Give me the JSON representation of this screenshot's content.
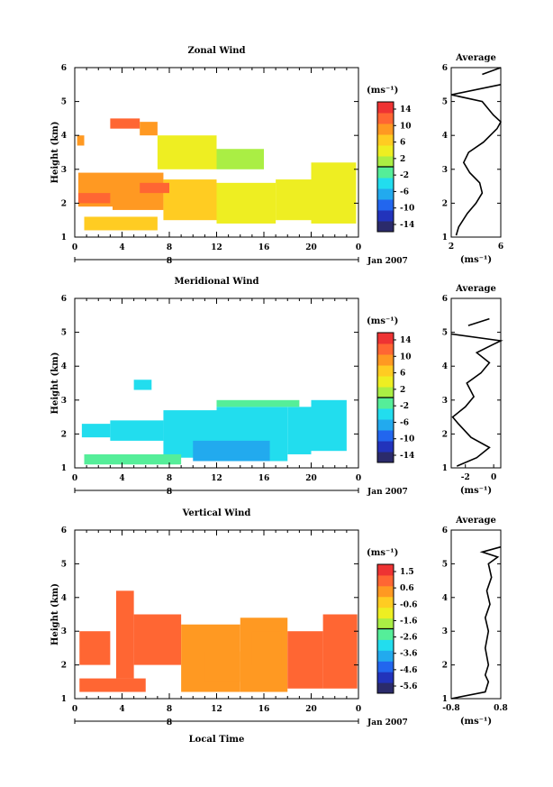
{
  "chart_data": [
    {
      "type": "heatmap",
      "title": "Zonal Wind",
      "ylabel": "Height (km)",
      "xlabel": "",
      "xlim": [
        0,
        24
      ],
      "ylim": [
        1,
        6
      ],
      "x_ticks": [
        "0",
        "4",
        "8",
        "12",
        "16",
        "20",
        "0"
      ],
      "y_ticks": [
        "1",
        "2",
        "3",
        "4",
        "5",
        "6"
      ],
      "date_marker": "8",
      "date_label": "Jan 2007",
      "colorbar": {
        "unit": "(ms⁻¹)",
        "labels": [
          "14",
          "10",
          "6",
          "2",
          "-2",
          "-6",
          "-10",
          "-14"
        ],
        "min": -16,
        "max": 16
      },
      "patches": [
        {
          "x": [
            0.3,
            3.2
          ],
          "y": [
            1.9,
            2.9
          ],
          "value": 10
        },
        {
          "x": [
            3.2,
            7.5
          ],
          "y": [
            1.8,
            2.9
          ],
          "value": 9
        },
        {
          "x": [
            7.5,
            12.0
          ],
          "y": [
            1.5,
            2.7
          ],
          "value": 6
        },
        {
          "x": [
            12.0,
            17.0
          ],
          "y": [
            1.4,
            2.6
          ],
          "value": 5
        },
        {
          "x": [
            17.0,
            20.0
          ],
          "y": [
            1.5,
            2.7
          ],
          "value": 4
        },
        {
          "x": [
            20.0,
            23.8
          ],
          "y": [
            1.4,
            3.2
          ],
          "value": 3
        },
        {
          "x": [
            0.3,
            3.0
          ],
          "y": [
            2.0,
            2.3
          ],
          "value": 12
        },
        {
          "x": [
            5.5,
            8.0
          ],
          "y": [
            2.3,
            2.6
          ],
          "value": 11
        },
        {
          "x": [
            3.0,
            5.5
          ],
          "y": [
            4.2,
            4.5
          ],
          "value": 11
        },
        {
          "x": [
            5.5,
            7.0
          ],
          "y": [
            4.0,
            4.4
          ],
          "value": 9
        },
        {
          "x": [
            7.0,
            12.0
          ],
          "y": [
            3.0,
            4.0
          ],
          "value": 4
        },
        {
          "x": [
            0.2,
            0.8
          ],
          "y": [
            3.7,
            4.0
          ],
          "value": 8
        },
        {
          "x": [
            0.8,
            7.0
          ],
          "y": [
            1.2,
            1.6
          ],
          "value": 6
        },
        {
          "x": [
            12.0,
            16.0
          ],
          "y": [
            3.0,
            3.6
          ],
          "value": 2
        }
      ],
      "profile": {
        "title": "Average",
        "xlabel": "(ms⁻¹)",
        "x_ticks": [
          "2",
          "6"
        ],
        "xlim": [
          2,
          6
        ],
        "ylim": [
          1,
          6
        ],
        "line": [
          {
            "x": 2.4,
            "y": 1.05
          },
          {
            "x": 2.6,
            "y": 1.3
          },
          {
            "x": 3.3,
            "y": 1.7
          },
          {
            "x": 4.0,
            "y": 2.0
          },
          {
            "x": 4.5,
            "y": 2.3
          },
          {
            "x": 4.3,
            "y": 2.6
          },
          {
            "x": 3.5,
            "y": 2.9
          },
          {
            "x": 3.0,
            "y": 3.2
          },
          {
            "x": 3.4,
            "y": 3.5
          },
          {
            "x": 4.6,
            "y": 3.8
          },
          {
            "x": 5.7,
            "y": 4.2
          },
          {
            "x": 6.0,
            "y": 4.4
          },
          {
            "x": 5.4,
            "y": 4.6
          },
          {
            "x": 4.5,
            "y": 5.0
          },
          {
            "x": 2.0,
            "y": 5.2
          },
          {
            "x": 6.0,
            "y": 5.5
          }
        ],
        "extra_segment": [
          {
            "x": 4.5,
            "y": 5.8
          },
          {
            "x": 6.0,
            "y": 6.0
          }
        ]
      }
    },
    {
      "type": "heatmap",
      "title": "Meridional Wind",
      "ylabel": "Height (km)",
      "xlabel": "",
      "xlim": [
        0,
        24
      ],
      "ylim": [
        1,
        6
      ],
      "x_ticks": [
        "0",
        "4",
        "8",
        "12",
        "16",
        "20",
        "0"
      ],
      "y_ticks": [
        "1",
        "2",
        "3",
        "4",
        "5",
        "6"
      ],
      "date_marker": "8",
      "date_label": "Jan 2007",
      "colorbar": {
        "unit": "(ms⁻¹)",
        "labels": [
          "14",
          "10",
          "6",
          "2",
          "-2",
          "-6",
          "-10",
          "-14"
        ],
        "min": -16,
        "max": 16
      },
      "patches": [
        {
          "x": [
            0.6,
            3.0
          ],
          "y": [
            1.9,
            2.3
          ],
          "value": -4
        },
        {
          "x": [
            3.0,
            7.5
          ],
          "y": [
            1.8,
            2.4
          ],
          "value": -3
        },
        {
          "x": [
            7.5,
            12.0
          ],
          "y": [
            1.3,
            2.7
          ],
          "value": -4
        },
        {
          "x": [
            12.0,
            18.0
          ],
          "y": [
            1.2,
            2.8
          ],
          "value": -4
        },
        {
          "x": [
            18.0,
            20.0
          ],
          "y": [
            1.4,
            2.8
          ],
          "value": -3
        },
        {
          "x": [
            20.0,
            23.0
          ],
          "y": [
            1.5,
            3.0
          ],
          "value": -3
        },
        {
          "x": [
            10.0,
            16.5
          ],
          "y": [
            1.2,
            1.8
          ],
          "value": -6
        },
        {
          "x": [
            5.0,
            6.5
          ],
          "y": [
            3.3,
            3.6
          ],
          "value": -3
        },
        {
          "x": [
            12.0,
            19.0
          ],
          "y": [
            2.8,
            3.0
          ],
          "value": -2
        },
        {
          "x": [
            0.8,
            9.0
          ],
          "y": [
            1.1,
            1.4
          ],
          "value": -2
        }
      ],
      "profile": {
        "title": "Average",
        "xlabel": "(ms⁻¹)",
        "x_ticks": [
          "-2",
          "0"
        ],
        "xlim": [
          -3,
          0.5
        ],
        "ylim": [
          1,
          6
        ],
        "line": [
          {
            "x": -2.6,
            "y": 1.05
          },
          {
            "x": -1.2,
            "y": 1.3
          },
          {
            "x": -0.3,
            "y": 1.6
          },
          {
            "x": -1.6,
            "y": 1.9
          },
          {
            "x": -2.5,
            "y": 2.3
          },
          {
            "x": -2.9,
            "y": 2.5
          },
          {
            "x": -2.0,
            "y": 2.8
          },
          {
            "x": -1.4,
            "y": 3.1
          },
          {
            "x": -1.9,
            "y": 3.5
          },
          {
            "x": -0.9,
            "y": 3.8
          },
          {
            "x": -0.3,
            "y": 4.1
          },
          {
            "x": -1.2,
            "y": 4.4
          },
          {
            "x": 0.0,
            "y": 4.65
          },
          {
            "x": 0.5,
            "y": 4.75
          },
          {
            "x": -3.0,
            "y": 4.95
          }
        ],
        "extra_segment": [
          {
            "x": -1.8,
            "y": 5.2
          },
          {
            "x": -0.3,
            "y": 5.4
          }
        ]
      }
    },
    {
      "type": "heatmap",
      "title": "Vertical Wind",
      "ylabel": "Height (km)",
      "xlabel": "Local Time",
      "xlim": [
        0,
        24
      ],
      "ylim": [
        1,
        6
      ],
      "x_ticks": [
        "0",
        "4",
        "8",
        "12",
        "16",
        "20",
        "0"
      ],
      "y_ticks": [
        "1",
        "2",
        "3",
        "4",
        "5",
        "6"
      ],
      "date_marker": "8",
      "date_label": "Jan 2007",
      "colorbar": {
        "unit": "(ms⁻¹)",
        "labels": [
          "1.5",
          "0.6",
          "-0.6",
          "-1.6",
          "-2.6",
          "-3.6",
          "-4.6",
          "-5.6"
        ],
        "min": -6.0,
        "max": 2.0
      },
      "patches": [
        {
          "x": [
            0.4,
            6.0
          ],
          "y": [
            1.2,
            1.6
          ],
          "value": 0.8
        },
        {
          "x": [
            0.4,
            3.0
          ],
          "y": [
            2.0,
            3.0
          ],
          "value": 0.9
        },
        {
          "x": [
            3.5,
            5.0
          ],
          "y": [
            1.6,
            4.2
          ],
          "value": 0.9
        },
        {
          "x": [
            5.0,
            9.0
          ],
          "y": [
            2.0,
            3.5
          ],
          "value": 0.8
        },
        {
          "x": [
            9.0,
            14.0
          ],
          "y": [
            1.2,
            3.2
          ],
          "value": 0.5
        },
        {
          "x": [
            14.0,
            18.0
          ],
          "y": [
            1.2,
            3.4
          ],
          "value": 0.6
        },
        {
          "x": [
            18.0,
            21.0
          ],
          "y": [
            1.3,
            3.0
          ],
          "value": 0.8
        },
        {
          "x": [
            21.0,
            23.9
          ],
          "y": [
            1.3,
            3.5
          ],
          "value": 0.9
        },
        {
          "x": [
            11.0,
            14.0
          ],
          "y": [
            1.5,
            2.4
          ],
          "value": 0.3
        },
        {
          "x": [
            15.0,
            17.5
          ],
          "y": [
            2.0,
            3.0
          ],
          "value": 0.3
        }
      ],
      "profile": {
        "title": "Average",
        "xlabel": "(ms⁻¹)",
        "x_ticks": [
          "-0.8",
          "0.8"
        ],
        "xlim": [
          -0.8,
          0.8
        ],
        "ylim": [
          1,
          6
        ],
        "line": [
          {
            "x": -0.8,
            "y": 1.0
          },
          {
            "x": 0.3,
            "y": 1.2
          },
          {
            "x": 0.4,
            "y": 1.5
          },
          {
            "x": 0.3,
            "y": 1.7
          },
          {
            "x": 0.4,
            "y": 2.0
          },
          {
            "x": 0.3,
            "y": 2.5
          },
          {
            "x": 0.4,
            "y": 3.0
          },
          {
            "x": 0.3,
            "y": 3.4
          },
          {
            "x": 0.45,
            "y": 3.8
          },
          {
            "x": 0.35,
            "y": 4.2
          },
          {
            "x": 0.5,
            "y": 4.6
          },
          {
            "x": 0.4,
            "y": 5.0
          },
          {
            "x": 0.7,
            "y": 5.2
          },
          {
            "x": 0.2,
            "y": 5.35
          },
          {
            "x": 0.8,
            "y": 5.5
          }
        ],
        "extra_segment": []
      }
    }
  ]
}
